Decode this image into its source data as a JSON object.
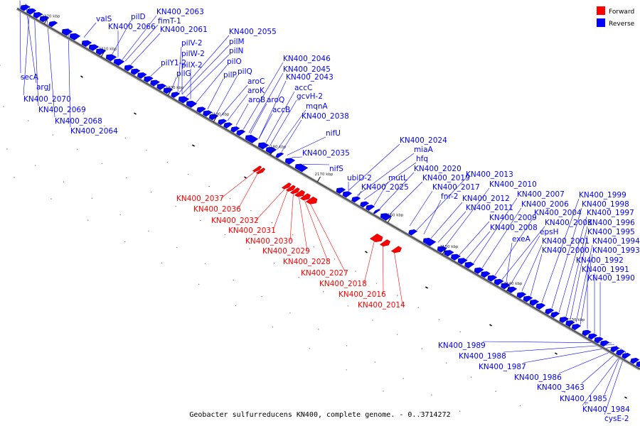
{
  "caption": "Geobacter sulfurreducens KN400, complete genome. - 0..3714272",
  "legend": [
    {
      "label": "Forward",
      "color": "#ff0000"
    },
    {
      "label": "Reverse",
      "color": "#0000ff"
    }
  ],
  "colors": {
    "forward": "#ff0000",
    "reverse": "#0000ff",
    "backbone": "#7a7a7a"
  },
  "ticks": [
    "2220 kbp",
    "2210 kbp",
    "2200 kbp",
    "2190 kbp",
    "2180 kbp",
    "2170 kbp",
    "2160 kbp",
    "2150 kbp",
    "2140 kbp",
    "2130 kbp"
  ],
  "reverse_labels": [
    "valS",
    "pilD",
    "KN400_2063",
    "fimT-1",
    "KN400_2066",
    "KN400_2061",
    "KN400_2055",
    "pilV-2",
    "pilM",
    "pilW-2",
    "pilN",
    "pilY1-2",
    "pilX-2",
    "pilO",
    "pilG",
    "pilP",
    "pilQ",
    "KN400_2046",
    "KN400_2045",
    "KN400_2043",
    "aroC",
    "aroK",
    "accC",
    "aroB",
    "aroQ",
    "gcvH-2",
    "accB",
    "mqnA",
    "KN400_2038",
    "nifU",
    "KN400_2035",
    "nifS",
    "secA",
    "argJ",
    "KN400_2070",
    "KN400_2069",
    "KN400_2068",
    "KN400_2064",
    "KN400_2024",
    "miaA",
    "hfq",
    "ubiD-2",
    "mutL",
    "KN400_2020",
    "KN400_2019",
    "KN400_2025",
    "KN400_2013",
    "fnr-2",
    "KN400_2017",
    "KN400_2012",
    "KN400_2010",
    "KN400_2011",
    "KN400_2007",
    "KN400_2006",
    "KN400_2009",
    "KN400_2004",
    "KN400_2008",
    "KN400_2003",
    "epsH",
    "exeA",
    "KN400_2001",
    "KN400_2000",
    "KN400_1999",
    "KN400_1998",
    "KN400_1997",
    "KN400_1996",
    "KN400_1995",
    "KN400_1994",
    "KN400_1993",
    "KN400_1992",
    "KN400_1991",
    "KN400_1990",
    "KN400_1989",
    "KN400_1988",
    "KN400_1987",
    "KN400_1986",
    "KN400_3463",
    "KN400_1985",
    "KN400_1984",
    "cysE-2"
  ],
  "forward_labels": [
    "KN400_2037",
    "KN400_2036",
    "KN400_2032",
    "KN400_2031",
    "KN400_2030",
    "KN400_2029",
    "KN400_2028",
    "KN400_2027",
    "KN400_2018",
    "KN400_2016",
    "KN400_2014"
  ]
}
